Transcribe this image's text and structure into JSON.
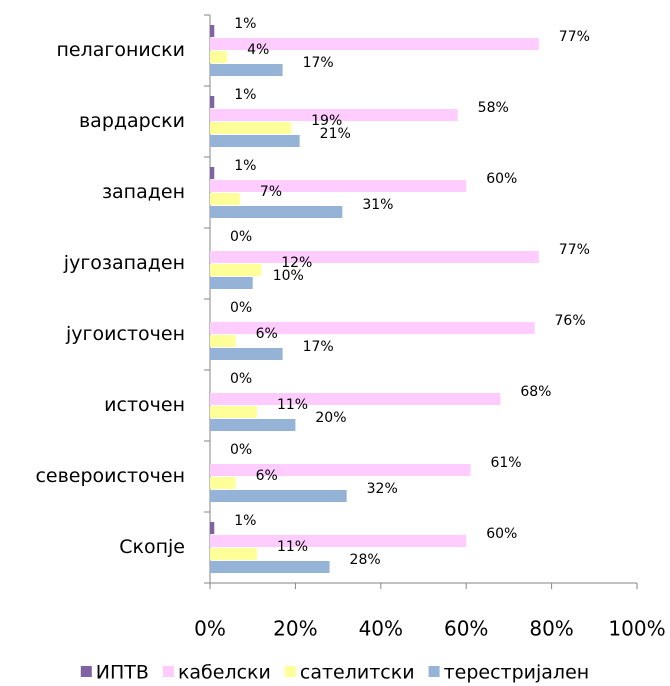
{
  "chart_data": {
    "type": "bar",
    "orientation": "horizontal",
    "categories": [
      "пелагониски",
      "вардарски",
      "западен",
      "југозападен",
      "југоисточен",
      "источен",
      "североисточен",
      "Скопје"
    ],
    "series": [
      {
        "name": "ИПТВ",
        "color": "#8064a2",
        "values": [
          1,
          1,
          1,
          0,
          0,
          0,
          0,
          1
        ],
        "value_labels": [
          "1%",
          "1%",
          "1%",
          "0%",
          "0%",
          "0%",
          "0%",
          "1%"
        ]
      },
      {
        "name": "кабелски",
        "color": "#ffccff",
        "values": [
          77,
          58,
          60,
          77,
          76,
          68,
          61,
          60
        ],
        "value_labels": [
          "77%",
          "58%",
          "60%",
          "77%",
          "76%",
          "68%",
          "61%",
          "60%"
        ]
      },
      {
        "name": "сателитски",
        "color": "#ffff99",
        "values": [
          4,
          19,
          7,
          12,
          6,
          11,
          6,
          11
        ],
        "value_labels": [
          "4%",
          "19%",
          "7%",
          "12%",
          "6%",
          "11%",
          "6%",
          "11%"
        ]
      },
      {
        "name": "терестријален",
        "color": "#95b3d7",
        "values": [
          17,
          21,
          31,
          10,
          17,
          20,
          32,
          28
        ],
        "value_labels": [
          "17%",
          "21%",
          "31%",
          "10%",
          "17%",
          "20%",
          "32%",
          "28%"
        ]
      }
    ],
    "xlim": [
      0,
      100
    ],
    "xticks": [
      {
        "value": 0,
        "label": "0%"
      },
      {
        "value": 20,
        "label": "20%"
      },
      {
        "value": 40,
        "label": "40%"
      },
      {
        "value": 60,
        "label": "60%"
      },
      {
        "value": 80,
        "label": "80%"
      },
      {
        "value": 100,
        "label": "100%"
      }
    ],
    "legend": "bottom"
  }
}
